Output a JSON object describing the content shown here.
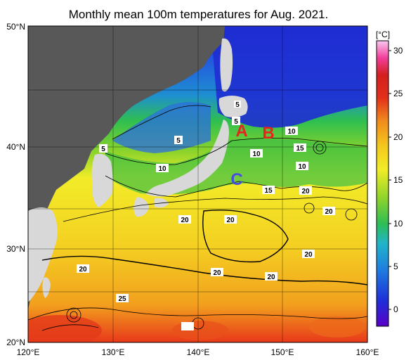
{
  "title": "Monthly mean 100m temperatures for Aug. 2021.",
  "map": {
    "lon_ticks": [
      "120°E",
      "130°E",
      "140°E",
      "150°E",
      "160°E"
    ],
    "lat_ticks": [
      "50°N",
      "40°N",
      "30°N",
      "20°N"
    ],
    "contour_labels": [
      "5",
      "5",
      "5",
      "5",
      "10",
      "10",
      "10",
      "10",
      "15",
      "15",
      "20",
      "20",
      "20",
      "20",
      "20",
      "20",
      "20",
      "20",
      "25"
    ],
    "region_labels": [
      {
        "text": "A",
        "color": "#e8241e"
      },
      {
        "text": "B",
        "color": "#e8241e"
      },
      {
        "text": "C",
        "color": "#4a4ee0"
      }
    ]
  },
  "colorbar": {
    "unit": "[°C]",
    "ticks": [
      "30",
      "25",
      "20",
      "15",
      "10",
      "5",
      "0"
    ],
    "stops": [
      "#5a00c8",
      "#1e2fd8",
      "#1f7fe0",
      "#21b5c8",
      "#2ebd55",
      "#8fd42a",
      "#f2ec28",
      "#f4c81c",
      "#f08a1c",
      "#e3301a",
      "#d41e1e",
      "#f23e9a",
      "#f9c8ee"
    ]
  }
}
